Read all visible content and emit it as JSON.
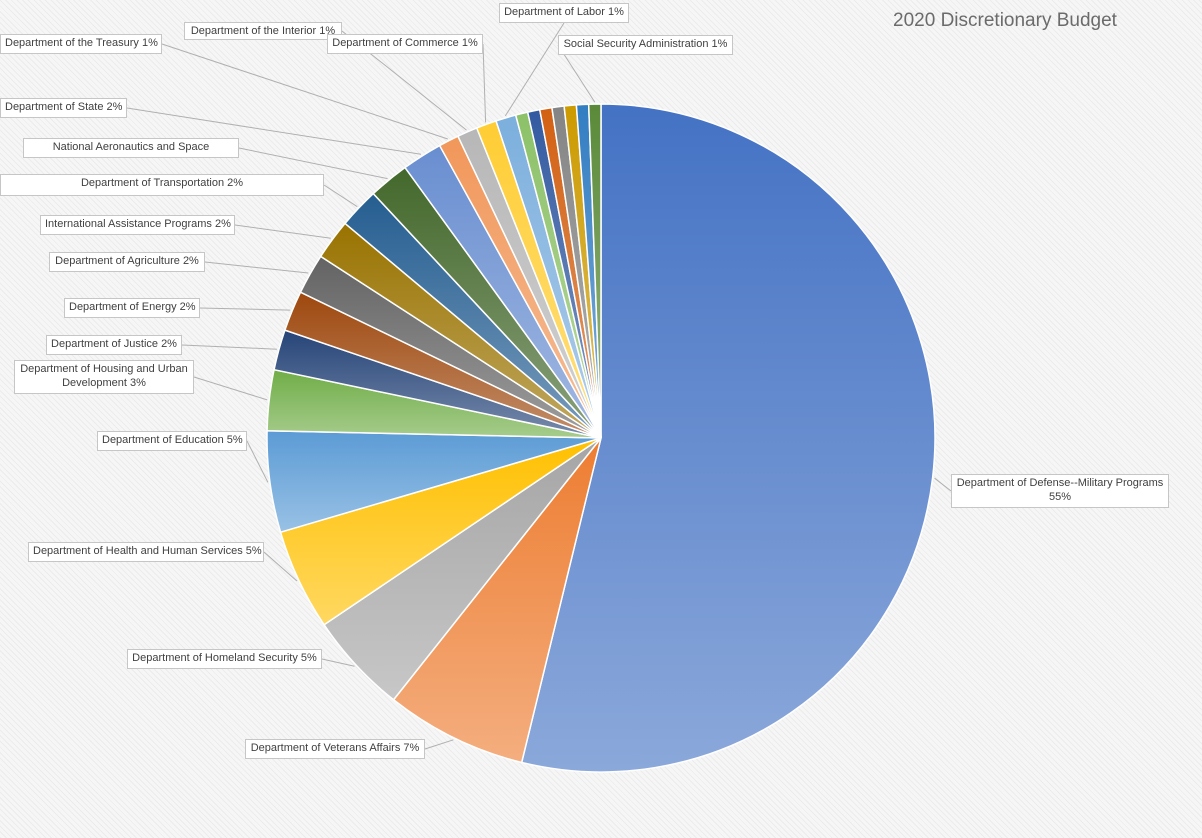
{
  "chart_data": {
    "type": "pie",
    "title": "2020 Discretionary Budget",
    "slices": [
      {
        "name": "Department of Defense--Military Programs",
        "value": 55,
        "label": "Department of Defense--Military Programs 55%",
        "color": "#4472c4"
      },
      {
        "name": "Department of Veterans Affairs",
        "value": 7,
        "label": "Department of Veterans Affairs 7%",
        "color": "#ed7d31"
      },
      {
        "name": "Department of Homeland Security",
        "value": 5,
        "label": "Department of Homeland Security 5%",
        "color": "#a5a5a5"
      },
      {
        "name": "Department of Health and Human Services",
        "value": 5,
        "label": "Department of Health and Human Services 5%",
        "color": "#ffc000"
      },
      {
        "name": "Department of Education",
        "value": 5,
        "label": "Department of Education 5%",
        "color": "#5b9bd5"
      },
      {
        "name": "Department of Housing and Urban Development",
        "value": 3,
        "label": "Department of Housing and Urban Development 3%",
        "color": "#70ad47"
      },
      {
        "name": "Department of Justice",
        "value": 2,
        "label": "Department of Justice 2%",
        "color": "#264478"
      },
      {
        "name": "Department of Energy",
        "value": 2,
        "label": "Department of Energy 2%",
        "color": "#9e480e"
      },
      {
        "name": "Department of Agriculture",
        "value": 2,
        "label": "Department of Agriculture 2%",
        "color": "#636363"
      },
      {
        "name": "International Assistance Programs",
        "value": 2,
        "label": "International Assistance Programs 2%",
        "color": "#997300"
      },
      {
        "name": "Department of Transportation",
        "value": 2,
        "label": "Department of Transportation 2%",
        "color": "#255e91"
      },
      {
        "name": "National Aeronautics and Space",
        "value": 2,
        "label": "National Aeronautics and Space",
        "color": "#43682b"
      },
      {
        "name": "Department of State",
        "value": 2,
        "label": "Department of State 2%",
        "color": "#698ed0"
      },
      {
        "name": "Department of the Treasury",
        "value": 1,
        "label": "Department of the Treasury 1%",
        "color": "#f1975a"
      },
      {
        "name": "Department of the Interior",
        "value": 1,
        "label": "Department of the Interior 1%",
        "color": "#b7b7b7"
      },
      {
        "name": "Department of Commerce",
        "value": 1,
        "label": "Department of Commerce 1%",
        "color": "#ffcd33"
      },
      {
        "name": "Department of Labor",
        "value": 1,
        "label": "Department of Labor 1%",
        "color": "#7cafdd"
      },
      {
        "name": "",
        "value": 0.6,
        "label": "",
        "color": "#8cc168"
      },
      {
        "name": "",
        "value": 0.6,
        "label": "",
        "color": "#335aa1"
      },
      {
        "name": "",
        "value": 0.6,
        "label": "",
        "color": "#d26012"
      },
      {
        "name": "",
        "value": 0.6,
        "label": "",
        "color": "#848484"
      },
      {
        "name": "",
        "value": 0.6,
        "label": "",
        "color": "#cc9a00"
      },
      {
        "name": "",
        "value": 0.6,
        "label": "",
        "color": "#327dc2"
      },
      {
        "name": "Social Security Administration",
        "value": 0.6,
        "label": "Social Security Administration 1%",
        "color": "#5a8a39"
      }
    ]
  }
}
